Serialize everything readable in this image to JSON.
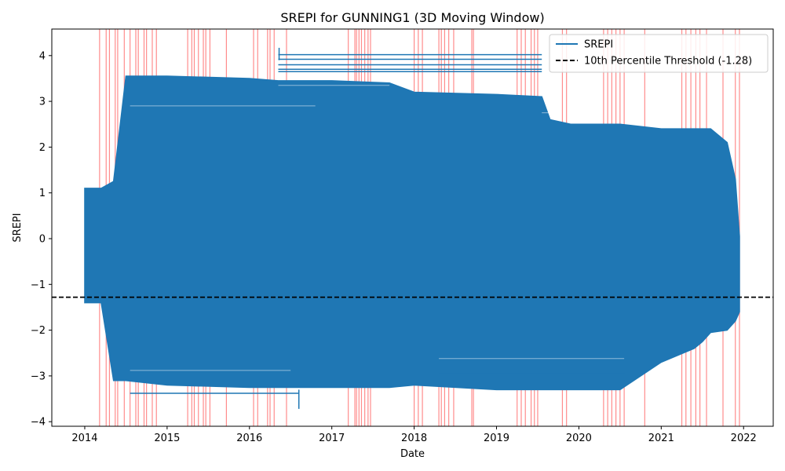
{
  "chart_data": {
    "type": "line",
    "title": "SREPI for GUNNING1 (3D Moving Window)",
    "xlabel": "Date",
    "ylabel": "SREPI",
    "xlim": [
      2013.6,
      2022.36
    ],
    "ylim": [
      -4.1,
      4.58
    ],
    "x_ticks": [
      "2014",
      "2015",
      "2016",
      "2017",
      "2018",
      "2019",
      "2020",
      "2021",
      "2022"
    ],
    "y_ticks": [
      "−4",
      "−3",
      "−2",
      "−1",
      "0",
      "1",
      "2",
      "3",
      "4"
    ],
    "grid": false,
    "legend_position": "top-right",
    "colors": {
      "series": "#1f77b4",
      "threshold": "#000000",
      "drought_span": "#ff0000"
    },
    "series": [
      {
        "name": "SREPI",
        "envelope_x": [
          2014.0,
          2014.2,
          2014.35,
          2014.5,
          2015.0,
          2016.0,
          2016.35,
          2017.0,
          2017.7,
          2018.0,
          2019.0,
          2019.55,
          2019.65,
          2019.9,
          2020.5,
          2021.0,
          2021.4,
          2021.5,
          2021.6,
          2021.8,
          2021.9,
          2021.95
        ],
        "envelope_upper": [
          1.1,
          1.1,
          1.25,
          3.55,
          3.55,
          3.5,
          3.45,
          3.45,
          3.4,
          3.2,
          3.15,
          3.1,
          2.6,
          2.5,
          2.5,
          2.4,
          2.4,
          2.4,
          2.4,
          2.1,
          1.3,
          0.05
        ],
        "envelope_lower": [
          -1.4,
          -1.4,
          -3.1,
          -3.1,
          -3.2,
          -3.25,
          -3.25,
          -3.25,
          -3.25,
          -3.2,
          -3.3,
          -3.3,
          -3.3,
          -3.3,
          -3.3,
          -2.7,
          -2.4,
          -2.25,
          -2.05,
          -2.0,
          -1.8,
          -1.6
        ]
      }
    ],
    "threshold": {
      "name": "10th Percentile Threshold (-1.28)",
      "value": -1.28
    },
    "drought_spans": [
      2014.18,
      2014.26,
      2014.3,
      2014.37,
      2014.4,
      2014.48,
      2014.55,
      2014.62,
      2014.65,
      2014.72,
      2014.75,
      2014.82,
      2014.87,
      2015.25,
      2015.3,
      2015.33,
      2015.38,
      2015.44,
      2015.47,
      2015.52,
      2015.72,
      2016.05,
      2016.1,
      2016.22,
      2016.25,
      2016.3,
      2016.45,
      2017.2,
      2017.28,
      2017.3,
      2017.33,
      2017.36,
      2017.4,
      2017.44,
      2017.47,
      2018.0,
      2018.05,
      2018.1,
      2018.3,
      2018.33,
      2018.37,
      2018.42,
      2018.48,
      2018.7,
      2018.72,
      2019.25,
      2019.3,
      2019.35,
      2019.42,
      2019.46,
      2019.5,
      2019.8,
      2019.85,
      2020.3,
      2020.35,
      2020.4,
      2020.45,
      2020.5,
      2020.55,
      2020.8,
      2021.25,
      2021.3,
      2021.36,
      2021.42,
      2021.47,
      2021.55,
      2021.75,
      2021.9,
      2021.95
    ]
  }
}
